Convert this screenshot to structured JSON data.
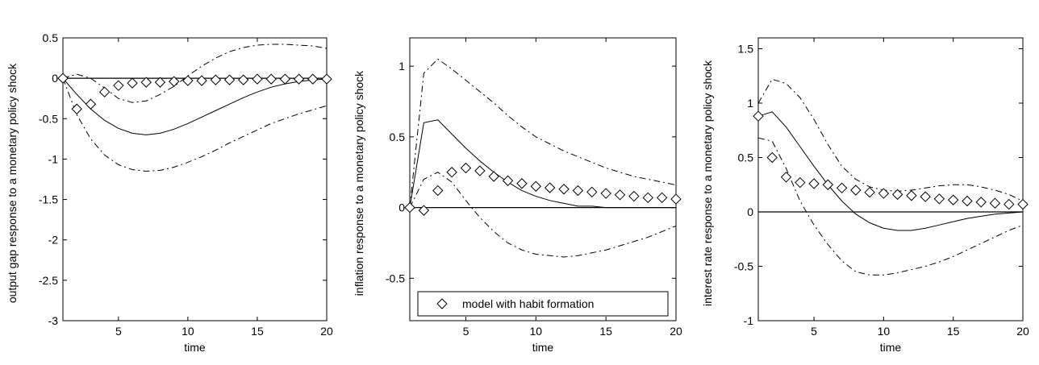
{
  "chart_data": [
    {
      "type": "line",
      "xlabel": "time",
      "ylabel": "output gap response to a monetary policy shock",
      "x": [
        1,
        2,
        3,
        4,
        5,
        6,
        7,
        8,
        9,
        10,
        11,
        12,
        13,
        14,
        15,
        16,
        17,
        18,
        19,
        20
      ],
      "xlim": [
        1,
        20
      ],
      "xticks": [
        5,
        10,
        15,
        20
      ],
      "ylim": [
        -3,
        0.5
      ],
      "yticks": [
        -3,
        -2.5,
        -2,
        -1.5,
        -1,
        -0.5,
        0,
        0.5
      ],
      "hline": 0,
      "series": [
        {
          "style": "solid",
          "color": "#000000",
          "values": [
            0,
            -0.2,
            -0.38,
            -0.52,
            -0.62,
            -0.68,
            -0.7,
            -0.68,
            -0.63,
            -0.56,
            -0.48,
            -0.4,
            -0.32,
            -0.24,
            -0.17,
            -0.11,
            -0.07,
            -0.04,
            -0.02,
            -0.01
          ]
        },
        {
          "style": "dashdot",
          "color": "#000000",
          "values": [
            0,
            0.05,
            0,
            -0.12,
            -0.25,
            -0.3,
            -0.28,
            -0.2,
            -0.1,
            0.03,
            0.15,
            0.25,
            0.33,
            0.38,
            0.41,
            0.42,
            0.42,
            0.41,
            0.4,
            0.37
          ]
        },
        {
          "style": "dashdot",
          "color": "#000000",
          "values": [
            0,
            -0.45,
            -0.75,
            -0.95,
            -1.07,
            -1.13,
            -1.15,
            -1.14,
            -1.1,
            -1.04,
            -0.97,
            -0.89,
            -0.8,
            -0.72,
            -0.64,
            -0.56,
            -0.5,
            -0.44,
            -0.39,
            -0.34
          ]
        },
        {
          "style": "markers",
          "color": "#000000",
          "values": [
            0,
            -0.38,
            -0.32,
            -0.17,
            -0.09,
            -0.06,
            -0.05,
            -0.05,
            -0.04,
            -0.03,
            -0.03,
            -0.02,
            -0.02,
            -0.02,
            -0.01,
            -0.01,
            -0.01,
            -0.01,
            -0.01,
            -0.01
          ]
        }
      ]
    },
    {
      "type": "line",
      "xlabel": "time",
      "ylabel": "inflation response to a monetary policy shock",
      "x": [
        1,
        2,
        3,
        4,
        5,
        6,
        7,
        8,
        9,
        10,
        11,
        12,
        13,
        14,
        15,
        16,
        17,
        18,
        19,
        20
      ],
      "xlim": [
        1,
        20
      ],
      "xticks": [
        5,
        10,
        15,
        20
      ],
      "ylim": [
        -0.8,
        1.2
      ],
      "yticks": [
        -0.5,
        0,
        0.5,
        1
      ],
      "hline": 0,
      "legend": "bottom",
      "series": [
        {
          "style": "solid",
          "color": "#000000",
          "values": [
            0,
            0.6,
            0.62,
            0.52,
            0.42,
            0.33,
            0.25,
            0.18,
            0.12,
            0.08,
            0.05,
            0.03,
            0.01,
            0.01,
            0,
            0,
            0,
            0,
            0,
            0
          ]
        },
        {
          "style": "dashdot",
          "color": "#000000",
          "values": [
            0,
            0.95,
            1.05,
            0.98,
            0.9,
            0.82,
            0.74,
            0.65,
            0.57,
            0.5,
            0.45,
            0.4,
            0.36,
            0.32,
            0.28,
            0.25,
            0.22,
            0.2,
            0.18,
            0.16
          ]
        },
        {
          "style": "dashdot",
          "color": "#000000",
          "values": [
            0,
            0.2,
            0.25,
            0.18,
            0.05,
            -0.07,
            -0.17,
            -0.25,
            -0.3,
            -0.33,
            -0.34,
            -0.35,
            -0.34,
            -0.32,
            -0.3,
            -0.27,
            -0.24,
            -0.21,
            -0.17,
            -0.13
          ]
        },
        {
          "style": "markers",
          "color": "#000000",
          "name": "model with habit formation",
          "values": [
            0,
            -0.02,
            0.12,
            0.25,
            0.28,
            0.26,
            0.22,
            0.19,
            0.17,
            0.15,
            0.14,
            0.13,
            0.12,
            0.11,
            0.1,
            0.09,
            0.08,
            0.07,
            0.07,
            0.06
          ]
        }
      ]
    },
    {
      "type": "line",
      "xlabel": "time",
      "ylabel": "interest rate response to a monetary policy shock",
      "x": [
        1,
        2,
        3,
        4,
        5,
        6,
        7,
        8,
        9,
        10,
        11,
        12,
        13,
        14,
        15,
        16,
        17,
        18,
        19,
        20
      ],
      "xlim": [
        1,
        20
      ],
      "xticks": [
        5,
        10,
        15,
        20
      ],
      "ylim": [
        -1,
        1.6
      ],
      "yticks": [
        -1,
        -0.5,
        0,
        0.5,
        1,
        1.5
      ],
      "hline": 0,
      "series": [
        {
          "style": "solid",
          "color": "#000000",
          "values": [
            0.88,
            0.92,
            0.78,
            0.6,
            0.42,
            0.25,
            0.1,
            -0.02,
            -0.1,
            -0.15,
            -0.17,
            -0.17,
            -0.15,
            -0.12,
            -0.09,
            -0.06,
            -0.04,
            -0.02,
            -0.01,
            0
          ]
        },
        {
          "style": "dashdot",
          "color": "#000000",
          "values": [
            1,
            1.22,
            1.18,
            1.05,
            0.85,
            0.62,
            0.42,
            0.3,
            0.23,
            0.2,
            0.19,
            0.2,
            0.22,
            0.24,
            0.25,
            0.25,
            0.23,
            0.2,
            0.16,
            0.1
          ]
        },
        {
          "style": "dashdot",
          "color": "#000000",
          "values": [
            0.68,
            0.65,
            0.4,
            0.1,
            -0.12,
            -0.3,
            -0.45,
            -0.55,
            -0.58,
            -0.58,
            -0.56,
            -0.53,
            -0.5,
            -0.46,
            -0.41,
            -0.35,
            -0.29,
            -0.23,
            -0.17,
            -0.12
          ]
        },
        {
          "style": "markers",
          "color": "#000000",
          "values": [
            0.88,
            0.5,
            0.32,
            0.27,
            0.26,
            0.25,
            0.22,
            0.2,
            0.18,
            0.17,
            0.16,
            0.15,
            0.14,
            0.12,
            0.11,
            0.1,
            0.09,
            0.08,
            0.07,
            0.07
          ]
        }
      ]
    }
  ]
}
